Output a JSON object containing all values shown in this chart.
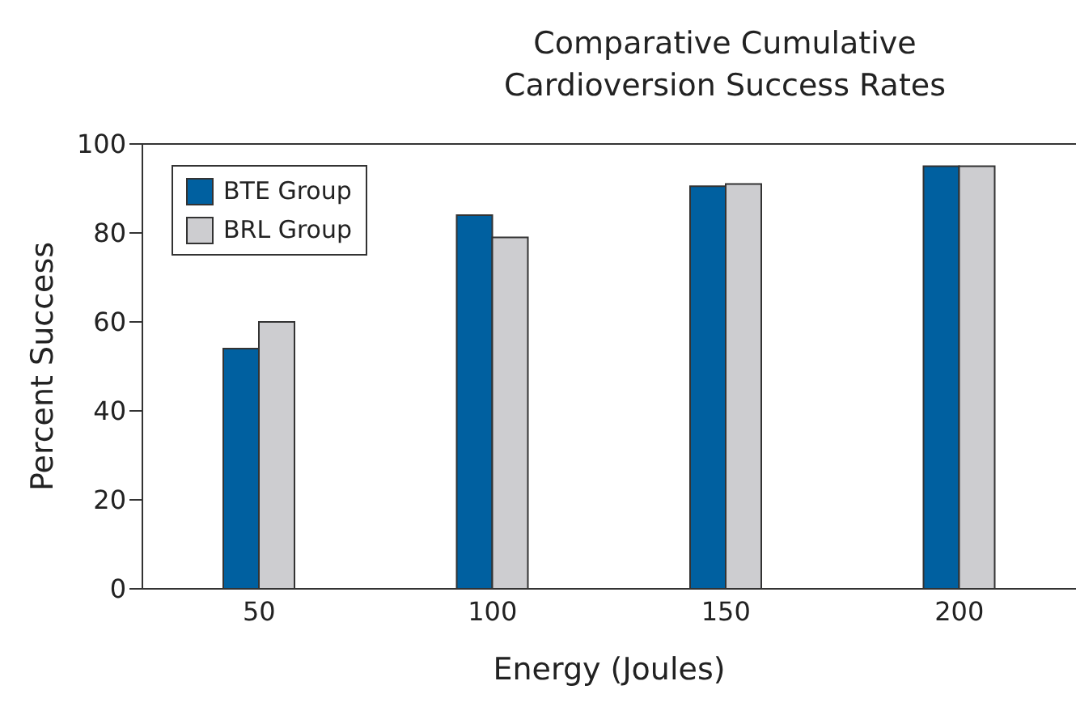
{
  "chart_data": {
    "type": "bar",
    "title": "Comparative Cumulative\nCardioversion Success Rates",
    "xlabel": "Energy (Joules)",
    "ylabel": "Percent Success",
    "categories": [
      "50",
      "100",
      "150",
      "200"
    ],
    "series": [
      {
        "name": "BTE Group",
        "color": "#0060a0",
        "values": [
          54,
          84,
          90.5,
          95
        ]
      },
      {
        "name": "BRL Group",
        "color": "#cdcdd0",
        "values": [
          60,
          79,
          91,
          95
        ]
      }
    ],
    "ylim": [
      0,
      100
    ],
    "yticks": [
      0,
      20,
      40,
      60,
      80,
      100
    ],
    "grid": false,
    "legend": "top left"
  }
}
